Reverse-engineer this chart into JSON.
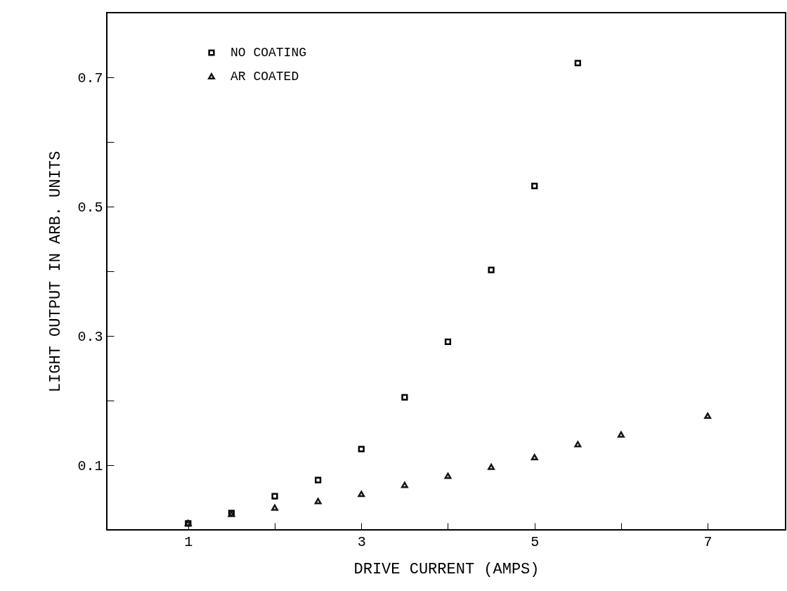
{
  "chart_data": {
    "type": "scatter",
    "xlabel": "DRIVE CURRENT (AMPS)",
    "ylabel": "LIGHT OUTPUT IN ARB. UNITS",
    "xlim": [
      0.06,
      7.9
    ],
    "xticks": [
      1,
      {
        "value": 2,
        "label": null
      },
      3,
      {
        "value": 4,
        "label": null
      },
      5,
      {
        "value": 6,
        "label": null
      },
      7
    ],
    "ylim": [
      0,
      0.8
    ],
    "yticks": [
      0.1,
      {
        "value": 0.2,
        "label": null
      },
      0.3,
      {
        "value": 0.4,
        "label": null
      },
      0.5,
      {
        "value": 0.6,
        "label": null
      },
      0.7
    ],
    "grid": false,
    "legend": "top left",
    "series": [
      {
        "name": "NO COATING",
        "color": "#000000",
        "marker": "square",
        "x": [
          1,
          1.5,
          2,
          2.5,
          3,
          3.5,
          4,
          4.5,
          5,
          5.5
        ],
        "values": [
          0.01,
          0.026,
          0.052,
          0.077,
          0.125,
          0.205,
          0.291,
          0.402,
          0.532,
          0.722
        ]
      },
      {
        "name": "AR COATED",
        "color": "#151515",
        "marker": "triangle",
        "x": [
          1,
          1.5,
          2,
          2.5,
          3,
          3.5,
          4,
          4.5,
          5,
          5.5,
          6,
          7
        ],
        "values": [
          0.01,
          0.024,
          0.034,
          0.044,
          0.055,
          0.069,
          0.083,
          0.097,
          0.112,
          0.132,
          0.147,
          0.176
        ]
      }
    ]
  }
}
